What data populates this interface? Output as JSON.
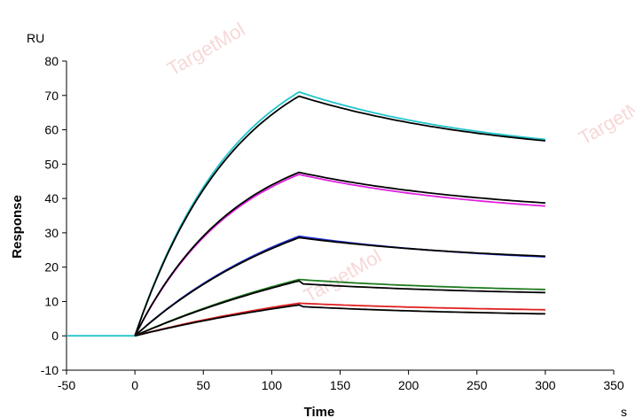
{
  "chart_data": {
    "type": "line",
    "title": "",
    "xlabel": "Time",
    "ylabel": "Response",
    "x_unit": "s",
    "y_unit": "RU",
    "xlim": [
      -50,
      350
    ],
    "ylim": [
      -10,
      80
    ],
    "xticks": [
      -50,
      0,
      50,
      100,
      150,
      200,
      250,
      300,
      350
    ],
    "yticks": [
      -10,
      0,
      10,
      20,
      30,
      40,
      50,
      60,
      70,
      80
    ],
    "watermark": "TargetMol",
    "association_end": 120,
    "dissociation_end": 300,
    "series": [
      {
        "name": "cyan",
        "color": "#22c4cc",
        "peak": 71.0,
        "end": 57.2,
        "baseline_start": -50
      },
      {
        "name": "cyan-fit",
        "color": "#000000",
        "peak": 69.8,
        "end": 56.8,
        "baseline_start": 0
      },
      {
        "name": "magenta",
        "color": "#e020e0",
        "peak": 47.0,
        "end": 37.8,
        "baseline_start": 0
      },
      {
        "name": "magenta-fit",
        "color": "#000000",
        "peak": 47.6,
        "end": 38.7,
        "baseline_start": 0
      },
      {
        "name": "blue",
        "color": "#1f2fd0",
        "peak": 29.0,
        "end": 23.0,
        "baseline_start": 0
      },
      {
        "name": "blue-fit",
        "color": "#000000",
        "peak": 28.6,
        "end": 23.2,
        "baseline_start": 0
      },
      {
        "name": "green",
        "color": "#1e7a1e",
        "peak": 16.4,
        "end": 13.5,
        "baseline_start": 0
      },
      {
        "name": "green-fit",
        "color": "#000000",
        "peak": 16.0,
        "end": 12.6,
        "baseline_start": 0
      },
      {
        "name": "red",
        "color": "#e02020",
        "peak": 9.5,
        "end": 7.6,
        "baseline_start": 0
      },
      {
        "name": "red-fit",
        "color": "#000000",
        "peak": 9.0,
        "end": 6.4,
        "baseline_start": 0
      }
    ]
  }
}
